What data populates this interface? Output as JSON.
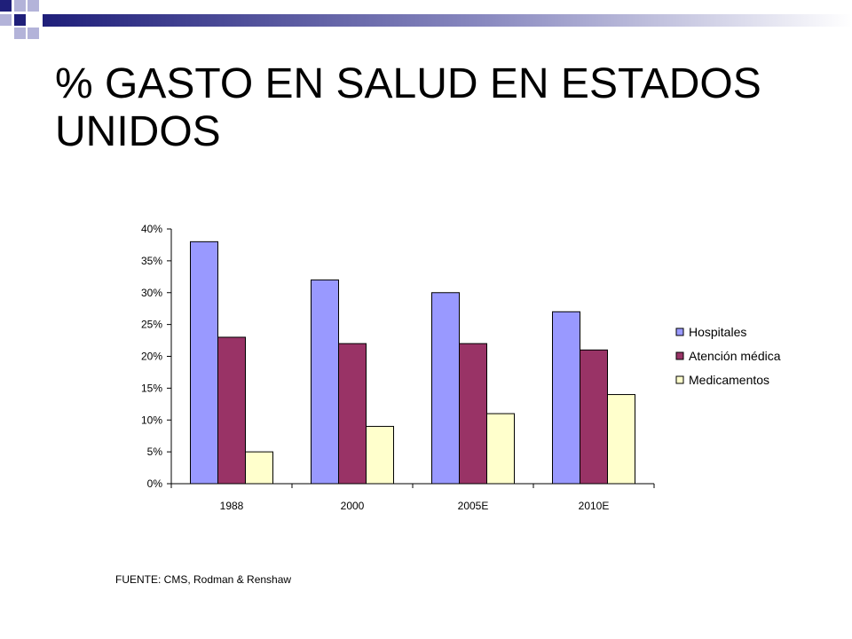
{
  "slide": {
    "title": "% GASTO EN SALUD EN ESTADOS UNIDOS",
    "source": "FUENTE: CMS, Rodman & Renshaw"
  },
  "colors": {
    "accent_dark": "#1F1F7A",
    "accent_light": "#B3B3D9"
  },
  "chart_data": {
    "type": "bar",
    "title": "",
    "xlabel": "",
    "ylabel": "",
    "categories": [
      "1988",
      "2000",
      "2005E",
      "2010E"
    ],
    "series": [
      {
        "name": "Hospitales",
        "values": [
          38,
          32,
          30,
          27
        ],
        "color": "#9999FF"
      },
      {
        "name": "Atención médica",
        "values": [
          23,
          22,
          22,
          21
        ],
        "color": "#993366"
      },
      {
        "name": "Medicamentos",
        "values": [
          5,
          9,
          11,
          14
        ],
        "color": "#FFFFCC"
      }
    ],
    "ylim": [
      0,
      40
    ],
    "yticks": [
      0,
      5,
      10,
      15,
      20,
      25,
      30,
      35,
      40
    ],
    "ytick_labels": [
      "0%",
      "5%",
      "10%",
      "15%",
      "20%",
      "25%",
      "30%",
      "35%",
      "40%"
    ],
    "grid": false,
    "legend_position": "right"
  }
}
